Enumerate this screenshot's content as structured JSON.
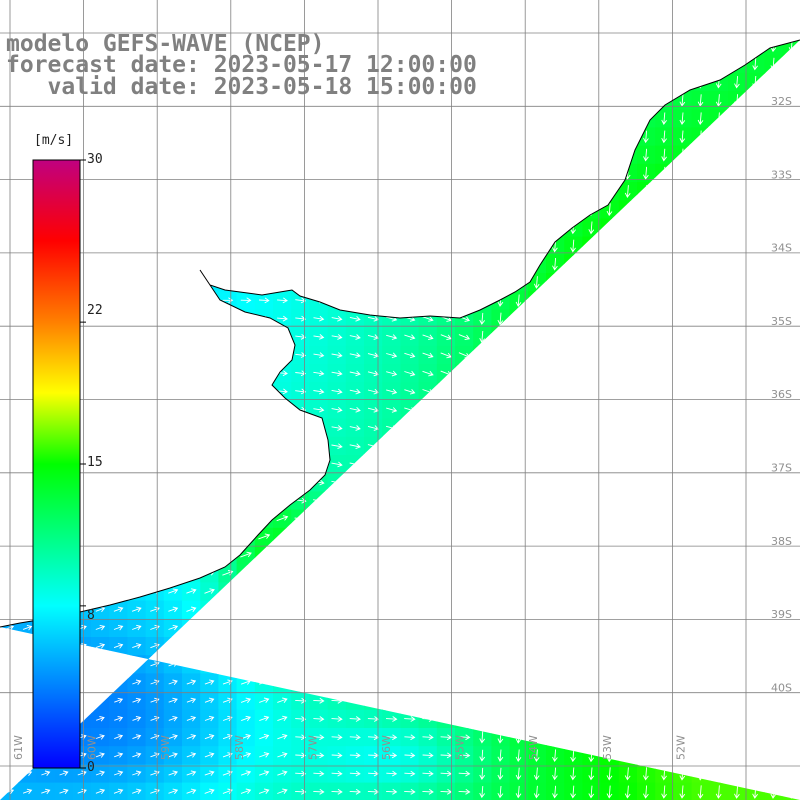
{
  "title": {
    "model": "modelo GEFS-WAVE (NCEP)",
    "forecast": "forecast date: 2023-05-17 12:00:00",
    "valid": "   valid date: 2023-05-18 15:00:00"
  },
  "colorbar": {
    "unit": "[m/s]",
    "ticks": [
      "30",
      "22",
      "15",
      "8",
      "0"
    ],
    "tick_values": [
      30,
      22,
      15,
      8,
      0
    ],
    "range": [
      0,
      30
    ],
    "colors": [
      "#0000ff",
      "#0080ff",
      "#00ffff",
      "#00ff00",
      "#ffff00",
      "#ff8000",
      "#ff0000",
      "#c00080"
    ]
  },
  "axes": {
    "lat_labels": [
      "32S",
      "33S",
      "34S",
      "35S",
      "36S",
      "37S",
      "38S",
      "39S",
      "40S"
    ],
    "lon_labels": [
      "61W",
      "60W",
      "59W",
      "58W",
      "57W",
      "56W",
      "55W",
      "54W",
      "53W",
      "52W"
    ]
  },
  "colors": {
    "land": "#ffffff",
    "grid": "#808080",
    "coast": "#000000",
    "arrow": "#ffffff",
    "title": "#808080"
  }
}
